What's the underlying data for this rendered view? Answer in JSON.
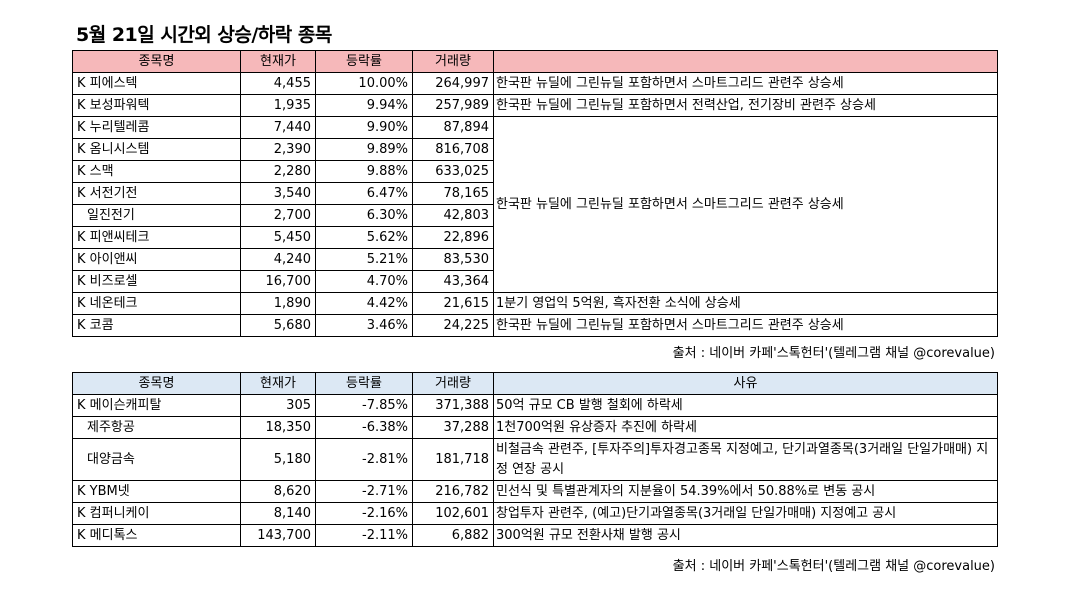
{
  "title": "5월 21일  시간외 상승/하락 종목",
  "rise_table": {
    "headers": [
      "종목명",
      "현재가",
      "등락률",
      "거래량",
      ""
    ],
    "rows": [
      {
        "name": "K 피에스텍",
        "price": "4,455",
        "change": "10.00%",
        "volume": "264,997",
        "reason": "한국판 뉴딜에 그린뉴딜 포함하면서 스마트그리드 관련주 상승세"
      },
      {
        "name": "K 보성파워텍",
        "price": "1,935",
        "change": "9.94%",
        "volume": "257,989",
        "reason": "한국판 뉴딜에 그린뉴딜 포함하면서 전력산업, 전기장비 관련주 상승세"
      },
      {
        "name": "K 누리텔레콤",
        "price": "7,440",
        "change": "9.90%",
        "volume": "87,894"
      },
      {
        "name": "K 옴니시스템",
        "price": "2,390",
        "change": "9.89%",
        "volume": "816,708"
      },
      {
        "name": "K 스맥",
        "price": "2,280",
        "change": "9.88%",
        "volume": "633,025"
      },
      {
        "name": "K 서전기전",
        "price": "3,540",
        "change": "6.47%",
        "volume": "78,165"
      },
      {
        "name": "일진전기",
        "price": "2,700",
        "change": "6.30%",
        "volume": "42,803"
      },
      {
        "name": "K 피앤씨테크",
        "price": "5,450",
        "change": "5.62%",
        "volume": "22,896"
      },
      {
        "name": "K 아이앤씨",
        "price": "4,240",
        "change": "5.21%",
        "volume": "83,530"
      },
      {
        "name": "K 비즈로셀",
        "price": "16,700",
        "change": "4.70%",
        "volume": "43,364"
      },
      {
        "name": "K 네온테크",
        "price": "1,890",
        "change": "4.42%",
        "volume": "21,615",
        "reason": "1분기 영업익 5억원, 흑자전환 소식에 상승세"
      },
      {
        "name": "K 코콤",
        "price": "5,680",
        "change": "3.46%",
        "volume": "24,225",
        "reason": "한국판 뉴딜에 그린뉴딜 포함하면서 스마트그리드 관련주 상승세"
      }
    ],
    "merged_reason": "한국판 뉴딜에 그린뉴딜 포함하면서 스마트그리드 관련주 상승세",
    "source": "출처 : 네이버 카페'스톡헌터'(텔레그램 채널 @corevalue)"
  },
  "fall_table": {
    "headers": [
      "종목명",
      "현재가",
      "등락률",
      "거래량",
      "사유"
    ],
    "rows": [
      {
        "name": "K 메이슨캐피탈",
        "price": "305",
        "change": "-7.85%",
        "volume": "371,388",
        "reason": "50억 규모 CB 발행 철회에 하락세"
      },
      {
        "name": "제주항공",
        "price": "18,350",
        "change": "-6.38%",
        "volume": "37,288",
        "reason": "1천700억원 유상증자 추진에 하락세"
      },
      {
        "name": "대양금속",
        "price": "5,180",
        "change": "-2.81%",
        "volume": "181,718",
        "reason": "비철금속 관련주, [투자주의]투자경고종목 지정예고, 단기과열종목(3거래일 단일가매매) 지정 연장 공시"
      },
      {
        "name": "K YBM넷",
        "price": "8,620",
        "change": "-2.71%",
        "volume": "216,782",
        "reason": "민선식 및 특별관계자의 지분율이 54.39%에서 50.88%로 변동 공시"
      },
      {
        "name": "K 컴퍼니케이",
        "price": "8,140",
        "change": "-2.16%",
        "volume": "102,601",
        "reason": "창업투자 관련주, (예고)단기과열종목(3거래일 단일가매매) 지정예고 공시"
      },
      {
        "name": "K 메디톡스",
        "price": "143,700",
        "change": "-2.11%",
        "volume": "6,882",
        "reason": "300억원 규모 전환사채 발행 공시"
      }
    ],
    "source": "출처 : 네이버 카페'스톡헌터'(텔레그램 채널 @corevalue)"
  }
}
